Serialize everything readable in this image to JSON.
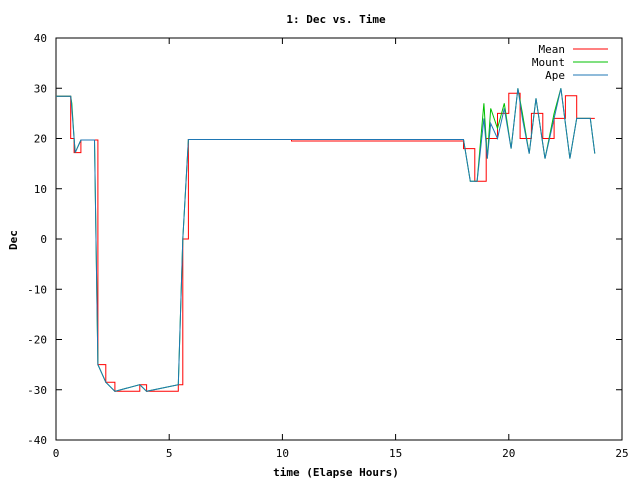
{
  "chart_data": {
    "type": "line",
    "title": "1: Dec vs. Time",
    "xlabel": "time (Elapse Hours)",
    "ylabel": "Dec",
    "xlim": [
      0,
      25
    ],
    "ylim": [
      -40,
      40
    ],
    "xticks": [
      0,
      5,
      10,
      15,
      20,
      25
    ],
    "yticks": [
      -40,
      -30,
      -20,
      -10,
      0,
      10,
      20,
      30,
      40
    ],
    "x_tick_labels": [
      "0",
      "5",
      "10",
      "15",
      "20",
      "25"
    ],
    "y_tick_labels": [
      "-40",
      "-30",
      "-20",
      "-10",
      "0",
      "10",
      "20",
      "30",
      "40"
    ],
    "grid": false,
    "legend_position": "top-right",
    "series": [
      {
        "name": "Mean",
        "color": "#ff0000",
        "x": [
          0.0,
          0.65,
          0.65,
          0.8,
          0.8,
          1.1,
          1.1,
          1.7,
          1.7,
          1.85,
          1.85,
          2.2,
          2.2,
          2.6,
          2.6,
          3.7,
          3.7,
          4.0,
          4.0,
          5.4,
          5.4,
          5.6,
          5.6,
          5.85,
          5.85,
          10.4,
          10.4,
          18.0,
          18.0,
          18.5,
          18.5,
          19.0,
          19.0,
          19.5,
          19.5,
          20.0,
          20.0,
          20.5,
          20.5,
          21.0,
          21.0,
          21.5,
          21.5,
          22.0,
          22.0,
          22.5,
          22.5,
          23.0,
          23.0,
          23.5,
          23.5,
          23.8
        ],
        "y": [
          28.4,
          28.4,
          20,
          20,
          17.2,
          17.2,
          19.7,
          19.7,
          19.7,
          19.7,
          -25,
          -25,
          -28.5,
          -28.5,
          -30.3,
          -30.3,
          -29,
          -29,
          -30.3,
          -30.3,
          -29,
          -29,
          0,
          0,
          19.8,
          19.8,
          19.5,
          19.5,
          18,
          18,
          11.5,
          11.5,
          20,
          20,
          25,
          25,
          29,
          29,
          20,
          20,
          25,
          25,
          20,
          20,
          24,
          24,
          28.5,
          28.5,
          24,
          24,
          24,
          24
        ]
      },
      {
        "name": "Mount",
        "color": "#00c000",
        "x": [
          0.0,
          0.65,
          0.7,
          0.8,
          0.85,
          1.1,
          1.7,
          1.85,
          2.2,
          2.6,
          3.7,
          4.0,
          5.4,
          5.6,
          5.85,
          18.0,
          18.3,
          18.6,
          18.9,
          19.05,
          19.2,
          19.5,
          19.8,
          20.1,
          20.4,
          20.6,
          20.9,
          21.2,
          21.6,
          22.0,
          22.3,
          22.7,
          23.0,
          23.3,
          23.6,
          23.8
        ],
        "y": [
          28.4,
          28.4,
          27,
          20,
          17.2,
          19.7,
          19.7,
          -25,
          -28.5,
          -30.3,
          -29,
          -30.3,
          -29,
          0,
          19.8,
          19.8,
          11.5,
          11.5,
          27,
          16,
          26,
          22,
          27,
          18,
          30,
          25,
          17,
          28,
          16,
          25,
          30,
          16,
          24,
          24,
          24,
          17
        ]
      },
      {
        "name": "Ape",
        "color": "#1f77b4",
        "x": [
          0.0,
          0.65,
          0.7,
          0.8,
          0.85,
          1.1,
          1.7,
          1.85,
          2.2,
          2.6,
          3.7,
          4.0,
          5.4,
          5.6,
          5.85,
          18.0,
          18.3,
          18.6,
          18.9,
          19.05,
          19.2,
          19.5,
          19.8,
          20.1,
          20.4,
          20.6,
          20.9,
          21.2,
          21.6,
          22.0,
          22.3,
          22.7,
          23.0,
          23.3,
          23.6,
          23.8
        ],
        "y": [
          28.4,
          28.4,
          26,
          20,
          17.2,
          19.7,
          19.7,
          -25,
          -28.5,
          -30.3,
          -29,
          -30.3,
          -29,
          0,
          19.8,
          19.8,
          11.5,
          11.5,
          24,
          16,
          23,
          20,
          26,
          18,
          30,
          24,
          17,
          28,
          16,
          24,
          30,
          16,
          24,
          24,
          24,
          17
        ]
      }
    ]
  }
}
